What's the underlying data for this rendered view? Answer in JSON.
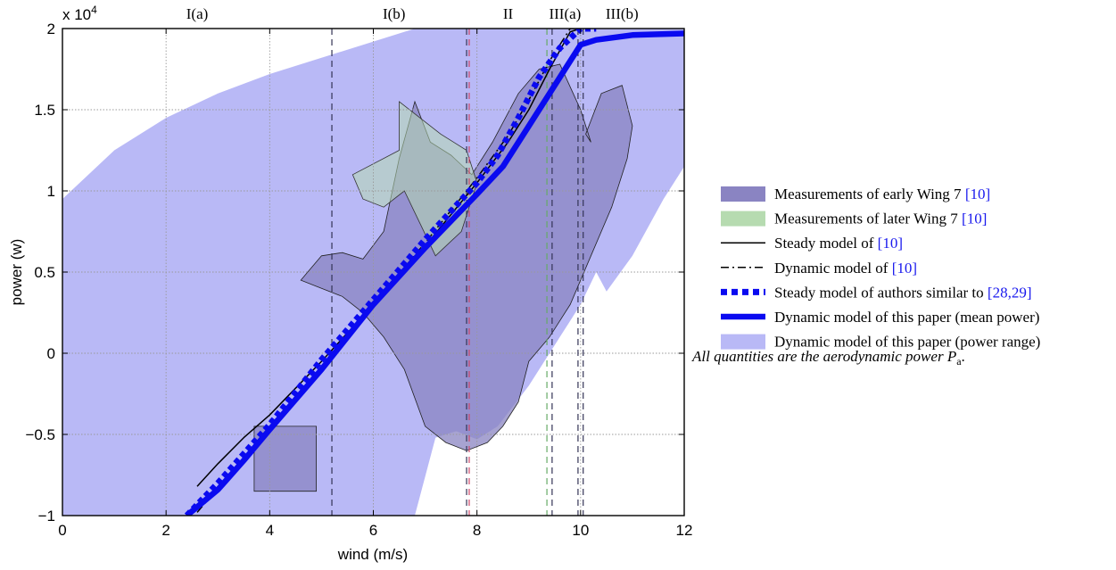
{
  "chart_data": {
    "type": "line",
    "xlabel": "wind (m/s)",
    "ylabel": "power (w)",
    "y_multiplier": "x 10",
    "y_multiplier_exp": "4",
    "xlim": [
      0,
      12
    ],
    "ylim": [
      -1,
      2
    ],
    "y_scale_note": "values in units of 10^4 W",
    "grid": true,
    "legend_position": "right, outside plot",
    "x_ticks": [
      0,
      2,
      4,
      6,
      8,
      10,
      12
    ],
    "x_tick_labels": [
      "0",
      "2",
      "4",
      "6",
      "8",
      "10",
      "12"
    ],
    "y_ticks": [
      -1,
      -0.5,
      0,
      0.5,
      1,
      1.5,
      2
    ],
    "y_tick_labels": [
      "−1",
      "−0.5",
      "0",
      "0.5",
      "1",
      "1.5",
      "2"
    ],
    "regions": [
      {
        "label": "I(a)",
        "x": 2.6
      },
      {
        "label": "I(b)",
        "x": 6.4
      },
      {
        "label": "II",
        "x": 8.6
      },
      {
        "label": "III(a)",
        "x": 9.7
      },
      {
        "label": "III(b)",
        "x": 10.8
      }
    ],
    "vertical_lines": [
      {
        "x": 5.2,
        "color": "#333355"
      },
      {
        "x": 7.8,
        "color": "#333355"
      },
      {
        "x": 7.85,
        "color": "#cc4466"
      },
      {
        "x": 9.35,
        "color": "#66aa66"
      },
      {
        "x": 9.45,
        "color": "#333355"
      },
      {
        "x": 9.95,
        "color": "#333355"
      },
      {
        "x": 10.05,
        "color": "#333355"
      }
    ],
    "power_range_upper": {
      "x": [
        0,
        1.0,
        2.0,
        3.0,
        4.0,
        5.0,
        6.0,
        6.8,
        7.6,
        8.4,
        9.2,
        10.0,
        11.0,
        12.0
      ],
      "y": [
        0.95,
        1.25,
        1.45,
        1.6,
        1.72,
        1.82,
        1.92,
        2.0,
        2.0,
        2.0,
        2.0,
        2.0,
        2.0,
        2.0
      ]
    },
    "power_range_lower": {
      "x": [
        0,
        2.0,
        4.0,
        5.0,
        6.0,
        6.8,
        7.2,
        7.6,
        8.0,
        8.4,
        9.0,
        9.6,
        10.0,
        10.3,
        10.5,
        11.0,
        11.6,
        12.0
      ],
      "y": [
        -1.0,
        -1.0,
        -1.0,
        -1.0,
        -1.0,
        -1.0,
        -0.52,
        -0.48,
        -0.53,
        -0.45,
        -0.2,
        0.1,
        0.3,
        0.5,
        0.38,
        0.6,
        0.95,
        1.15
      ]
    },
    "early_measurements_regions": [
      {
        "x": [
          3.7,
          4.9,
          4.9,
          3.7
        ],
        "y": [
          -0.45,
          -0.45,
          -0.85,
          -0.85
        ]
      },
      {
        "x": [
          4.6,
          5.0,
          5.4,
          5.8,
          6.2,
          6.5,
          6.8,
          7.1,
          7.5,
          7.9,
          8.3,
          8.8,
          9.2,
          9.6,
          10.0,
          10.2,
          10.1,
          10.4,
          10.8,
          11.0,
          10.9,
          10.6,
          10.2,
          9.8,
          9.4,
          9.0,
          8.8,
          8.5,
          8.2,
          7.8,
          7.4,
          7.0,
          6.6,
          6.2,
          5.8,
          5.4,
          5.0,
          4.6
        ],
        "y": [
          0.45,
          0.6,
          0.62,
          0.58,
          0.75,
          1.2,
          1.55,
          1.3,
          1.22,
          1.1,
          1.3,
          1.6,
          1.75,
          1.78,
          1.5,
          1.3,
          1.35,
          1.6,
          1.65,
          1.4,
          1.2,
          0.9,
          0.6,
          0.3,
          0.1,
          -0.05,
          -0.3,
          -0.45,
          -0.55,
          -0.6,
          -0.55,
          -0.45,
          -0.1,
          0.1,
          0.25,
          0.35,
          0.4,
          0.45
        ]
      }
    ],
    "later_measurements_regions": [
      {
        "x": [
          5.6,
          6.5,
          6.5,
          7.3,
          7.8,
          8.0,
          7.7,
          7.2,
          6.9,
          6.6,
          6.2,
          5.8,
          5.6
        ],
        "y": [
          1.1,
          1.25,
          1.55,
          1.35,
          1.25,
          1.05,
          0.75,
          0.6,
          0.8,
          1.0,
          0.9,
          0.95,
          1.1
        ]
      }
    ],
    "series": [
      {
        "name": "Steady model of [10]",
        "style": "thin-solid",
        "x": [
          2.6,
          3.0,
          3.5,
          4.0,
          5.0,
          6.0,
          7.0,
          8.0,
          8.6,
          9.0,
          9.4,
          9.8,
          10.0
        ],
        "y": [
          -0.82,
          -0.68,
          -0.52,
          -0.38,
          -0.05,
          0.3,
          0.66,
          1.05,
          1.3,
          1.5,
          1.75,
          1.98,
          2.0
        ]
      },
      {
        "name": "Dynamic model of [10]",
        "style": "dash-dot",
        "x": [
          2.6,
          3.0,
          3.5,
          4.0,
          5.0,
          6.0,
          7.0,
          8.0,
          8.6,
          9.0,
          9.4,
          9.8,
          10.0
        ],
        "y": [
          -0.98,
          -0.83,
          -0.65,
          -0.46,
          -0.08,
          0.3,
          0.68,
          1.08,
          1.34,
          1.56,
          1.8,
          2.0,
          2.0
        ]
      },
      {
        "name": "Steady model of authors similar to [28,29]",
        "style": "thick-dotted",
        "x": [
          2.4,
          3.0,
          3.5,
          4.0,
          5.0,
          6.0,
          7.0,
          8.0,
          8.4,
          8.8,
          9.2,
          9.6,
          10.0,
          10.3
        ],
        "y": [
          -1.0,
          -0.8,
          -0.62,
          -0.44,
          -0.04,
          0.33,
          0.7,
          1.05,
          1.22,
          1.45,
          1.7,
          1.88,
          2.0,
          2.0
        ]
      },
      {
        "name": "Dynamic model of this paper (mean power)",
        "style": "thick-solid",
        "x": [
          2.4,
          3.0,
          3.5,
          4.0,
          5.0,
          6.0,
          7.0,
          8.0,
          8.5,
          9.0,
          9.5,
          10.0,
          10.3,
          11.0,
          12.0
        ],
        "y": [
          -1.0,
          -0.84,
          -0.66,
          -0.47,
          -0.1,
          0.3,
          0.65,
          0.98,
          1.15,
          1.4,
          1.65,
          1.9,
          1.93,
          1.96,
          1.97
        ]
      }
    ],
    "legend": [
      {
        "kind": "patch",
        "color": "#8a84c2",
        "text": "Measurements of early Wing 7 ",
        "cite": "[10]"
      },
      {
        "kind": "patch",
        "color": "#b6dbb0",
        "text": "Measurements of later Wing 7 ",
        "cite": "[10]"
      },
      {
        "kind": "thin-solid",
        "color": "#000000",
        "text": "Steady model of ",
        "cite": "[10]"
      },
      {
        "kind": "dash-dot",
        "color": "#000000",
        "text": "Dynamic model of ",
        "cite": "[10]"
      },
      {
        "kind": "thick-dotted",
        "color": "#0a0af0",
        "text": "Steady model of authors similar to ",
        "cite": "[28,29]"
      },
      {
        "kind": "thick-solid",
        "color": "#0a0af0",
        "text": "Dynamic model of this paper (mean power)",
        "cite": ""
      },
      {
        "kind": "patch",
        "color": "#b9b9f6",
        "text": "Dynamic model of this paper (power range)",
        "cite": ""
      }
    ],
    "note": "All quantities are the aerodynamic power ",
    "note_symbol": "P",
    "note_sub": "a",
    "note_end": "."
  }
}
